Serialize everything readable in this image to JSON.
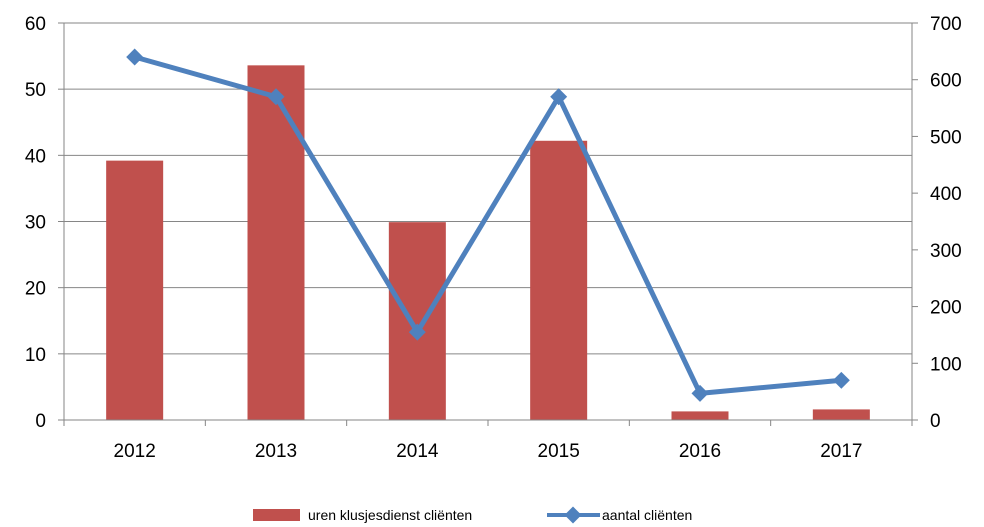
{
  "chart_data": {
    "type": "bar",
    "categories": [
      "2012",
      "2013",
      "2014",
      "2015",
      "2016",
      "2017"
    ],
    "series": [
      {
        "name": "uren klusjesdienst cliënten",
        "type": "bar",
        "axis": "left",
        "color": "#c0504d",
        "values": [
          39.2,
          53.6,
          29.9,
          42.2,
          1.3,
          1.6
        ]
      },
      {
        "name": "aantal cliënten",
        "type": "line",
        "axis": "right",
        "color": "#4f81bd",
        "values": [
          640,
          570,
          155,
          570,
          47,
          70
        ]
      }
    ],
    "y_left": {
      "ylim": [
        0,
        60
      ],
      "ticks": [
        "0",
        "10",
        "20",
        "30",
        "40",
        "50",
        "60"
      ]
    },
    "y_right": {
      "ylim": [
        0,
        700
      ],
      "ticks": [
        "0",
        "100",
        "200",
        "300",
        "400",
        "500",
        "600",
        "700"
      ]
    },
    "grid": true,
    "legend_position": "bottom"
  }
}
